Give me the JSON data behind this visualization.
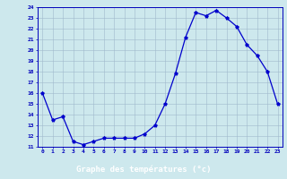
{
  "hours": [
    0,
    1,
    2,
    3,
    4,
    5,
    6,
    7,
    8,
    9,
    10,
    11,
    12,
    13,
    14,
    15,
    16,
    17,
    18,
    19,
    20,
    21,
    22,
    23
  ],
  "temps": [
    16.0,
    13.5,
    13.8,
    11.5,
    11.2,
    11.5,
    11.8,
    11.8,
    11.8,
    11.8,
    12.2,
    13.0,
    15.0,
    17.8,
    21.2,
    23.5,
    23.2,
    23.7,
    23.0,
    22.2,
    20.5,
    19.5,
    18.0,
    15.0
  ],
  "ylim": [
    11,
    24
  ],
  "yticks": [
    11,
    12,
    13,
    14,
    15,
    16,
    17,
    18,
    19,
    20,
    21,
    22,
    23,
    24
  ],
  "xlabel": "Graphe des températures (°c)",
  "line_color": "#0000cc",
  "marker": "*",
  "bg_color": "#cde8ed",
  "grid_color": "#a0b8cc",
  "label_color": "#0000bb",
  "xlabel_bg": "#2222aa",
  "xlabel_fg": "#ffffff"
}
